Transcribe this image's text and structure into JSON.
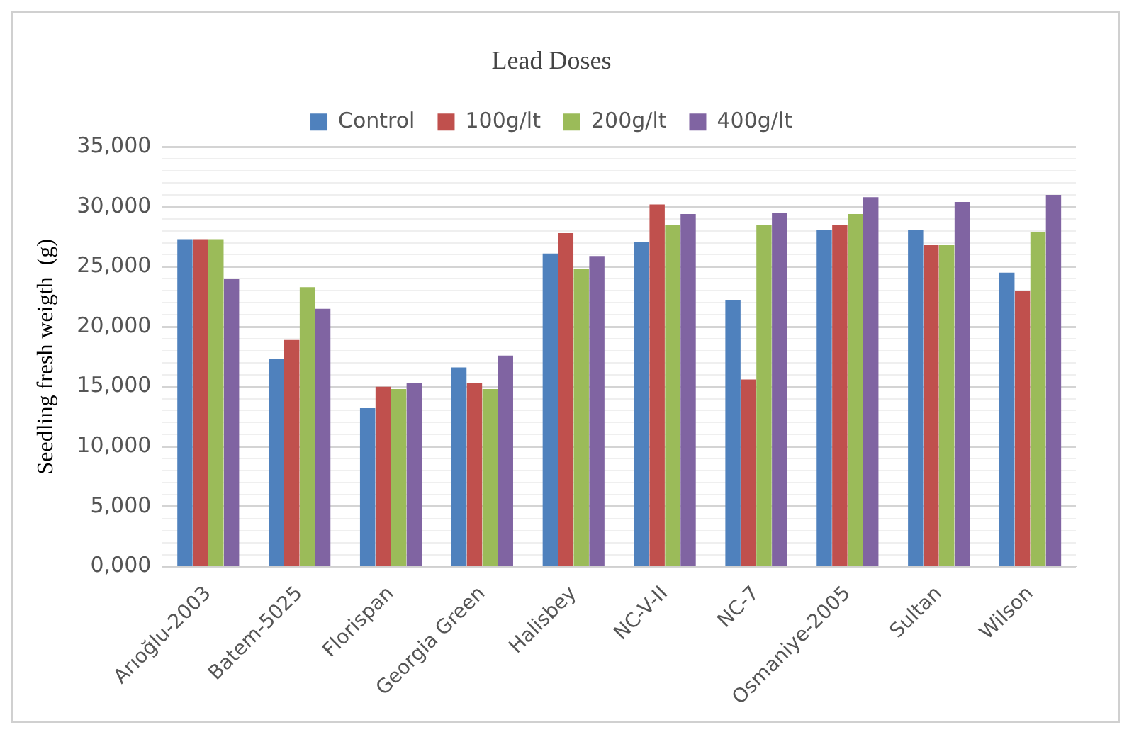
{
  "chart_data": {
    "type": "bar",
    "title": "Lead Doses",
    "ylabel": "Seedling fresh weigth  (g)",
    "categories": [
      "Arıoğlu-2003",
      "Batem-5025",
      "Florispan",
      "Georgia Green",
      "Halisbey",
      "NC-V-II",
      "NC-7",
      "Osmaniye-2005",
      "Sultan",
      "Wilson"
    ],
    "series": [
      {
        "name": "Control",
        "color": "#4f81bd",
        "values": [
          27300,
          17300,
          13200,
          16600,
          26100,
          27100,
          22200,
          28100,
          28100,
          24500
        ]
      },
      {
        "name": "100g/lt",
        "color": "#c0504d",
        "values": [
          27300,
          18900,
          15000,
          15300,
          27800,
          30200,
          15600,
          28500,
          26800,
          23000
        ]
      },
      {
        "name": "200g/lt",
        "color": "#9bbb59",
        "values": [
          27300,
          23300,
          14800,
          14800,
          24800,
          28500,
          28500,
          29400,
          26800,
          27900
        ]
      },
      {
        "name": "400g/lt",
        "color": "#8064a2",
        "values": [
          24000,
          21500,
          15300,
          17600,
          25900,
          29400,
          29500,
          30800,
          30400,
          31000
        ]
      }
    ],
    "ylim": [
      0,
      35000
    ],
    "yticks": [
      {
        "value": 0,
        "label": "0,000"
      },
      {
        "value": 1000,
        "label": null
      },
      {
        "value": 2000,
        "label": null
      },
      {
        "value": 3000,
        "label": null
      },
      {
        "value": 4000,
        "label": null
      },
      {
        "value": 5000,
        "label": "5,000"
      },
      {
        "value": 6000,
        "label": null
      },
      {
        "value": 7000,
        "label": null
      },
      {
        "value": 8000,
        "label": null
      },
      {
        "value": 9000,
        "label": null
      },
      {
        "value": 10000,
        "label": "10,000"
      },
      {
        "value": 11000,
        "label": null
      },
      {
        "value": 12000,
        "label": null
      },
      {
        "value": 13000,
        "label": null
      },
      {
        "value": 14000,
        "label": null
      },
      {
        "value": 15000,
        "label": "15,000"
      },
      {
        "value": 16000,
        "label": null
      },
      {
        "value": 17000,
        "label": null
      },
      {
        "value": 18000,
        "label": null
      },
      {
        "value": 19000,
        "label": null
      },
      {
        "value": 20000,
        "label": "20,000"
      },
      {
        "value": 21000,
        "label": null
      },
      {
        "value": 22000,
        "label": null
      },
      {
        "value": 23000,
        "label": null
      },
      {
        "value": 24000,
        "label": null
      },
      {
        "value": 25000,
        "label": "25,000"
      },
      {
        "value": 26000,
        "label": null
      },
      {
        "value": 27000,
        "label": null
      },
      {
        "value": 28000,
        "label": null
      },
      {
        "value": 29000,
        "label": null
      },
      {
        "value": 30000,
        "label": "30,000"
      },
      {
        "value": 31000,
        "label": null
      },
      {
        "value": 32000,
        "label": null
      },
      {
        "value": 33000,
        "label": null
      },
      {
        "value": 34000,
        "label": null
      },
      {
        "value": 35000,
        "label": "35,000"
      }
    ],
    "grid": "y",
    "legend": "top"
  }
}
